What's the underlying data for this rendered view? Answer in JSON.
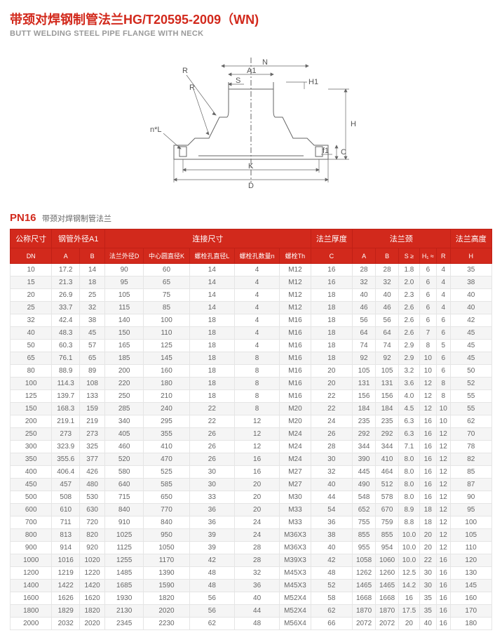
{
  "title_cn": "带颈对焊钢制管法兰HG/T20595-2009（WN)",
  "title_en": "BUTT WELDING STEEL PIPE FLANGE WITH NECK",
  "diagram_labels": [
    "R",
    "R",
    "N",
    "A1",
    "S",
    "H1",
    "n*L",
    "H",
    "f1",
    "C",
    "K",
    "D"
  ],
  "section": {
    "pn": "PN16",
    "sub": "带颈对焊钢制管法兰"
  },
  "header_groups": [
    {
      "label": "公称尺寸",
      "span": 1
    },
    {
      "label": "钢管外径A1",
      "span": 2
    },
    {
      "label": "连接尺寸",
      "span": 5
    },
    {
      "label": "法兰厚度",
      "span": 1
    },
    {
      "label": "法兰颈",
      "span": 5
    },
    {
      "label": "法兰高度",
      "span": 1
    }
  ],
  "header_cols": [
    "DN",
    "A",
    "B",
    "法兰外径D",
    "中心圆直径K",
    "螺栓孔直径L",
    "螺栓孔数量n",
    "螺栓Th",
    "C",
    "A",
    "B",
    "S ≥",
    "H₁ ≈",
    "R",
    "H"
  ],
  "rows": [
    [
      "10",
      "17.2",
      "14",
      "90",
      "60",
      "14",
      "4",
      "M12",
      "16",
      "28",
      "28",
      "1.8",
      "6",
      "4",
      "35"
    ],
    [
      "15",
      "21.3",
      "18",
      "95",
      "65",
      "14",
      "4",
      "M12",
      "16",
      "32",
      "32",
      "2.0",
      "6",
      "4",
      "38"
    ],
    [
      "20",
      "26.9",
      "25",
      "105",
      "75",
      "14",
      "4",
      "M12",
      "18",
      "40",
      "40",
      "2.3",
      "6",
      "4",
      "40"
    ],
    [
      "25",
      "33.7",
      "32",
      "115",
      "85",
      "14",
      "4",
      "M12",
      "18",
      "46",
      "46",
      "2.6",
      "6",
      "4",
      "40"
    ],
    [
      "32",
      "42.4",
      "38",
      "140",
      "100",
      "18",
      "4",
      "M16",
      "18",
      "56",
      "56",
      "2.6",
      "6",
      "6",
      "42"
    ],
    [
      "40",
      "48.3",
      "45",
      "150",
      "110",
      "18",
      "4",
      "M16",
      "18",
      "64",
      "64",
      "2.6",
      "7",
      "6",
      "45"
    ],
    [
      "50",
      "60.3",
      "57",
      "165",
      "125",
      "18",
      "4",
      "M16",
      "18",
      "74",
      "74",
      "2.9",
      "8",
      "5",
      "45"
    ],
    [
      "65",
      "76.1",
      "65",
      "185",
      "145",
      "18",
      "8",
      "M16",
      "18",
      "92",
      "92",
      "2.9",
      "10",
      "6",
      "45"
    ],
    [
      "80",
      "88.9",
      "89",
      "200",
      "160",
      "18",
      "8",
      "M16",
      "20",
      "105",
      "105",
      "3.2",
      "10",
      "6",
      "50"
    ],
    [
      "100",
      "114.3",
      "108",
      "220",
      "180",
      "18",
      "8",
      "M16",
      "20",
      "131",
      "131",
      "3.6",
      "12",
      "8",
      "52"
    ],
    [
      "125",
      "139.7",
      "133",
      "250",
      "210",
      "18",
      "8",
      "M16",
      "22",
      "156",
      "156",
      "4.0",
      "12",
      "8",
      "55"
    ],
    [
      "150",
      "168.3",
      "159",
      "285",
      "240",
      "22",
      "8",
      "M20",
      "22",
      "184",
      "184",
      "4.5",
      "12",
      "10",
      "55"
    ],
    [
      "200",
      "219.1",
      "219",
      "340",
      "295",
      "22",
      "12",
      "M20",
      "24",
      "235",
      "235",
      "6.3",
      "16",
      "10",
      "62"
    ],
    [
      "250",
      "273",
      "273",
      "405",
      "355",
      "26",
      "12",
      "M24",
      "26",
      "292",
      "292",
      "6.3",
      "16",
      "12",
      "70"
    ],
    [
      "300",
      "323.9",
      "325",
      "460",
      "410",
      "26",
      "12",
      "M24",
      "28",
      "344",
      "344",
      "7.1",
      "16",
      "12",
      "78"
    ],
    [
      "350",
      "355.6",
      "377",
      "520",
      "470",
      "26",
      "16",
      "M24",
      "30",
      "390",
      "410",
      "8.0",
      "16",
      "12",
      "82"
    ],
    [
      "400",
      "406.4",
      "426",
      "580",
      "525",
      "30",
      "16",
      "M27",
      "32",
      "445",
      "464",
      "8.0",
      "16",
      "12",
      "85"
    ],
    [
      "450",
      "457",
      "480",
      "640",
      "585",
      "30",
      "20",
      "M27",
      "40",
      "490",
      "512",
      "8.0",
      "16",
      "12",
      "87"
    ],
    [
      "500",
      "508",
      "530",
      "715",
      "650",
      "33",
      "20",
      "M30",
      "44",
      "548",
      "578",
      "8.0",
      "16",
      "12",
      "90"
    ],
    [
      "600",
      "610",
      "630",
      "840",
      "770",
      "36",
      "20",
      "M33",
      "54",
      "652",
      "670",
      "8.9",
      "18",
      "12",
      "95"
    ],
    [
      "700",
      "711",
      "720",
      "910",
      "840",
      "36",
      "24",
      "M33",
      "36",
      "755",
      "759",
      "8.8",
      "18",
      "12",
      "100"
    ],
    [
      "800",
      "813",
      "820",
      "1025",
      "950",
      "39",
      "24",
      "M36X3",
      "38",
      "855",
      "855",
      "10.0",
      "20",
      "12",
      "105"
    ],
    [
      "900",
      "914",
      "920",
      "1125",
      "1050",
      "39",
      "28",
      "M36X3",
      "40",
      "955",
      "954",
      "10.0",
      "20",
      "12",
      "110"
    ],
    [
      "1000",
      "1016",
      "1020",
      "1255",
      "1170",
      "42",
      "28",
      "M39X3",
      "42",
      "1058",
      "1060",
      "10.0",
      "22",
      "16",
      "120"
    ],
    [
      "1200",
      "1219",
      "1220",
      "1485",
      "1390",
      "48",
      "32",
      "M45X3",
      "48",
      "1262",
      "1260",
      "12.5",
      "30",
      "16",
      "130"
    ],
    [
      "1400",
      "1422",
      "1420",
      "1685",
      "1590",
      "48",
      "36",
      "M45X3",
      "52",
      "1465",
      "1465",
      "14.2",
      "30",
      "16",
      "145"
    ],
    [
      "1600",
      "1626",
      "1620",
      "1930",
      "1820",
      "56",
      "40",
      "M52X4",
      "58",
      "1668",
      "1668",
      "16",
      "35",
      "16",
      "160"
    ],
    [
      "1800",
      "1829",
      "1820",
      "2130",
      "2020",
      "56",
      "44",
      "M52X4",
      "62",
      "1870",
      "1870",
      "17.5",
      "35",
      "16",
      "170"
    ],
    [
      "2000",
      "2032",
      "2020",
      "2345",
      "2230",
      "62",
      "48",
      "M56X4",
      "66",
      "2072",
      "2072",
      "20",
      "40",
      "16",
      "180"
    ]
  ],
  "colors": {
    "brand": "#d2291c",
    "brand_dark": "#c02016",
    "row_alt": "#f5f5f5",
    "border": "#e5e5e5",
    "text": "#666",
    "muted": "#999"
  }
}
